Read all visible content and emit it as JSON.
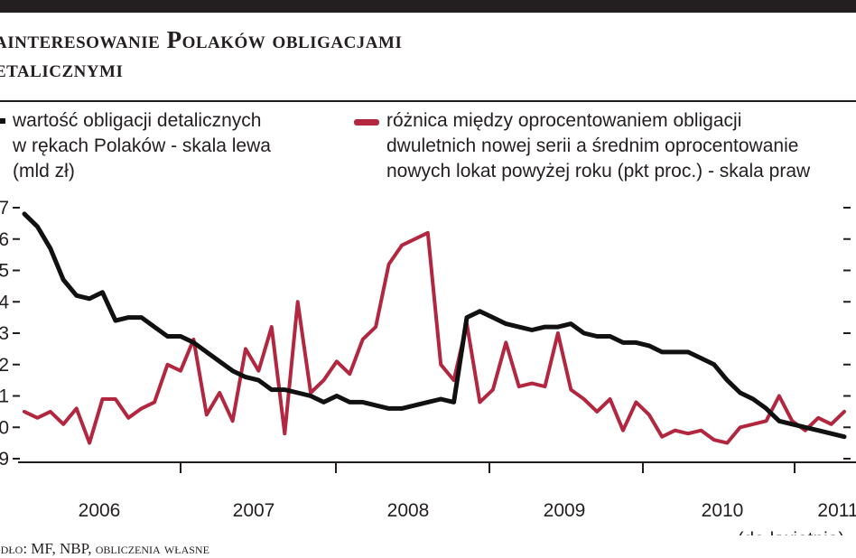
{
  "header": {
    "title_line1": "ainteresowanie Polaków obligacjami",
    "title_line2": "etalicznymi"
  },
  "legend": {
    "left_line1": "wartość obligacji detalicznych",
    "left_line2": "w rękach Polaków - skala lewa",
    "left_line3": "(mld zł)",
    "right_line1": "różnica między oprocentowaniem obligacji",
    "right_line2": "dwuletnich nowej serii a średnim oprocentowanie",
    "right_line3": "nowych lokat powyżej roku (pkt proc.) - skala praw"
  },
  "source": "ódło: MF, NBP, obliczenia własne",
  "colors": {
    "black_series": "#111111",
    "red_series": "#b2273f",
    "text": "#231f20"
  },
  "chart_data": {
    "type": "line",
    "x_period": "2006-01 to 2011-04 (monthly)",
    "x_tick_labels": [
      "2006",
      "2007",
      "2008",
      "2009",
      "2010",
      "2011"
    ],
    "x_sublabel": "(do kwietnia)",
    "left_axis": {
      "ylim": [
        9,
        17
      ],
      "tick_labels": [
        "9",
        "0",
        "1",
        "2",
        "3",
        "4",
        "5",
        "6",
        "7"
      ]
    },
    "series": [
      {
        "name": "wartość obligacji detalicznych w rękach Polaków - skala lewa",
        "axis": "left",
        "values": [
          16.8,
          16.4,
          15.7,
          14.7,
          14.2,
          14.1,
          14.3,
          13.4,
          13.5,
          13.5,
          13.2,
          12.9,
          12.9,
          12.7,
          12.4,
          12.1,
          11.8,
          11.6,
          11.5,
          11.2,
          11.2,
          11.1,
          11.0,
          10.8,
          11.0,
          10.8,
          10.8,
          10.7,
          10.6,
          10.6,
          10.7,
          10.8,
          10.9,
          10.8,
          13.5,
          13.7,
          13.5,
          13.3,
          13.2,
          13.1,
          13.2,
          13.2,
          13.3,
          13.0,
          12.9,
          12.9,
          12.7,
          12.7,
          12.6,
          12.4,
          12.4,
          12.4,
          12.2,
          12.0,
          11.5,
          11.1,
          10.9,
          10.6,
          10.2,
          10.1,
          10.0,
          9.9,
          9.8,
          9.7
        ]
      },
      {
        "name": "różnica między oprocentowaniem obligacji dwuletnich nowej serii a średnim oprocentowaniem nowych lokat powyżej roku (pkt proc.) - skala prawa",
        "axis": "right",
        "values": [
          10.5,
          10.3,
          10.5,
          10.1,
          10.6,
          9.5,
          10.9,
          10.9,
          10.3,
          10.6,
          10.8,
          12.0,
          11.8,
          12.8,
          10.4,
          11.1,
          10.2,
          12.5,
          11.8,
          13.2,
          9.8,
          14.0,
          11.1,
          11.5,
          12.1,
          11.7,
          12.8,
          13.2,
          15.2,
          15.8,
          16.0,
          16.2,
          12.0,
          11.5,
          13.3,
          10.8,
          11.2,
          12.7,
          11.3,
          11.4,
          11.3,
          13.0,
          11.2,
          10.9,
          10.5,
          10.9,
          9.9,
          10.8,
          10.4,
          9.7,
          9.9,
          9.8,
          9.9,
          9.6,
          9.5,
          10.0,
          10.1,
          10.2,
          11.0,
          10.2,
          9.9,
          10.3,
          10.1,
          10.5
        ]
      }
    ],
    "grid": false,
    "legend_position": "top"
  }
}
